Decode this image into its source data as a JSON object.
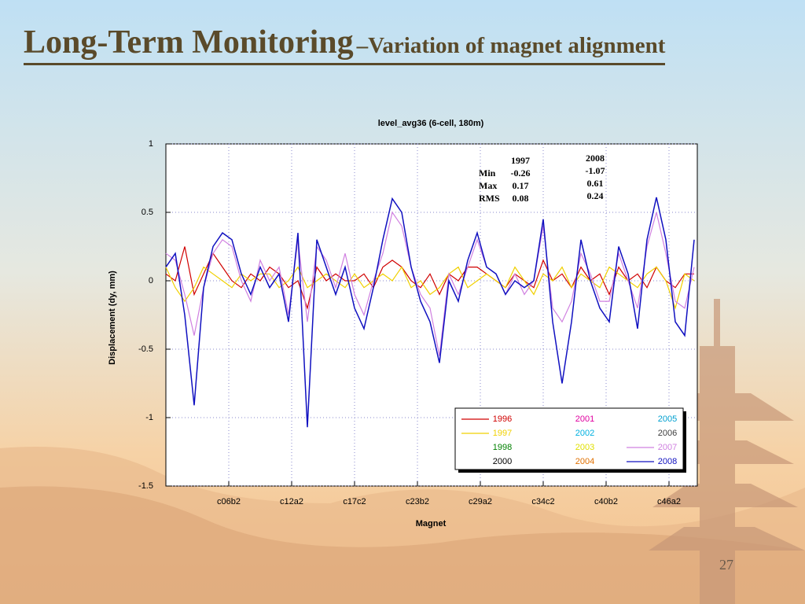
{
  "slide": {
    "title": "Long-Term Monitoring",
    "subtitle": "–Variation of magnet alignment",
    "page_number": "27"
  },
  "chart_data": {
    "type": "line",
    "title": "level_avg36 (6-cell, 180m)",
    "x_label": "Magnet",
    "y_label": "Displacement (dy, mm)",
    "xlim": [
      0,
      338
    ],
    "ylim": [
      -1.5,
      1
    ],
    "xticks": [
      {
        "value": 40,
        "label": "c06b2"
      },
      {
        "value": 80,
        "label": "c12a2"
      },
      {
        "value": 120,
        "label": "c17c2"
      },
      {
        "value": 160,
        "label": "c23b2"
      },
      {
        "value": 200,
        "label": "c29a2"
      },
      {
        "value": 240,
        "label": "c34c2"
      },
      {
        "value": 280,
        "label": "c40b2"
      },
      {
        "value": 320,
        "label": "c46a2"
      }
    ],
    "yticks": [
      -1.5,
      -1,
      -0.5,
      0,
      0.5,
      1
    ],
    "grid": true,
    "stats_labels": [
      "Min",
      "Max",
      "RMS"
    ],
    "stats": [
      {
        "year": "1997",
        "values": [
          "-0.26",
          "0.17",
          "0.08"
        ]
      },
      {
        "year": "2008",
        "values": [
          "-1.07",
          "0.61",
          "0.24"
        ]
      }
    ],
    "x": [
      0,
      6,
      12,
      18,
      24,
      30,
      36,
      42,
      48,
      54,
      60,
      66,
      72,
      78,
      84,
      90,
      96,
      102,
      108,
      114,
      120,
      126,
      132,
      138,
      144,
      150,
      156,
      162,
      168,
      174,
      180,
      186,
      192,
      198,
      204,
      210,
      216,
      222,
      228,
      234,
      240,
      246,
      252,
      258,
      264,
      270,
      276,
      282,
      288,
      294,
      300,
      306,
      312,
      318,
      324,
      330,
      336
    ],
    "series": [
      {
        "name": "1996",
        "color": "#d00000",
        "values": [
          0.05,
          0.0,
          0.25,
          -0.1,
          0.05,
          0.2,
          0.1,
          0.0,
          -0.05,
          0.05,
          0.0,
          0.1,
          0.05,
          -0.05,
          0.0,
          -0.2,
          0.1,
          0.0,
          0.05,
          0.0,
          0.0,
          0.05,
          -0.05,
          0.1,
          0.15,
          0.1,
          0.0,
          -0.05,
          0.05,
          -0.1,
          0.05,
          0.0,
          0.1,
          0.1,
          0.05,
          0.0,
          -0.05,
          0.05,
          0.0,
          -0.05,
          0.15,
          0.0,
          0.05,
          -0.05,
          0.1,
          0.0,
          0.05,
          -0.1,
          0.1,
          0.0,
          0.05,
          -0.05,
          0.1,
          0.0,
          -0.05,
          0.05,
          0.05
        ]
      },
      {
        "name": "1997",
        "color": "#f0d000",
        "values": [
          0.1,
          -0.05,
          -0.15,
          -0.05,
          0.1,
          0.05,
          0.0,
          -0.05,
          0.05,
          0.0,
          0.05,
          0.05,
          -0.05,
          0.0,
          0.1,
          -0.05,
          0.0,
          0.05,
          0.0,
          -0.05,
          0.05,
          -0.05,
          0.0,
          0.05,
          0.0,
          0.1,
          -0.05,
          0.0,
          -0.1,
          -0.05,
          0.05,
          0.1,
          -0.05,
          0.0,
          0.05,
          0.0,
          -0.05,
          0.1,
          0.0,
          -0.1,
          0.05,
          0.0,
          0.1,
          -0.05,
          0.05,
          0.0,
          -0.05,
          0.1,
          0.05,
          0.0,
          -0.05,
          0.05,
          0.1,
          0.0,
          -0.2,
          0.05,
          0.0
        ]
      },
      {
        "name": "1998",
        "color": "#008000"
      },
      {
        "name": "2000",
        "color": "#000000"
      },
      {
        "name": "2001",
        "color": "#e000a0"
      },
      {
        "name": "2002",
        "color": "#00b0e0"
      },
      {
        "name": "2003",
        "color": "#e0e000"
      },
      {
        "name": "2004",
        "color": "#e07000"
      },
      {
        "name": "2005",
        "color": "#00a0d0"
      },
      {
        "name": "2006",
        "color": "#404040"
      },
      {
        "name": "2007",
        "color": "#d080e0",
        "values": [
          0.2,
          0.15,
          -0.1,
          -0.4,
          -0.05,
          0.2,
          0.3,
          0.25,
          0.0,
          -0.15,
          0.15,
          0.0,
          0.1,
          -0.25,
          0.3,
          -0.3,
          0.25,
          0.15,
          -0.05,
          0.2,
          -0.1,
          -0.25,
          0.0,
          0.2,
          0.5,
          0.4,
          0.1,
          -0.1,
          -0.2,
          -0.55,
          0.05,
          -0.1,
          0.1,
          0.3,
          0.1,
          0.05,
          -0.1,
          0.05,
          -0.1,
          0.0,
          0.4,
          -0.2,
          -0.3,
          -0.15,
          0.2,
          0.05,
          -0.15,
          -0.15,
          0.2,
          0.0,
          -0.2,
          0.25,
          0.5,
          0.2,
          -0.15,
          -0.2,
          0.1
        ]
      },
      {
        "name": "2008",
        "color": "#1010c0",
        "values": [
          0.1,
          0.2,
          -0.25,
          -0.91,
          -0.05,
          0.25,
          0.35,
          0.3,
          0.05,
          -0.1,
          0.1,
          -0.05,
          0.05,
          -0.3,
          0.35,
          -1.07,
          0.3,
          0.1,
          -0.1,
          0.1,
          -0.2,
          -0.35,
          -0.05,
          0.3,
          0.6,
          0.5,
          0.1,
          -0.15,
          -0.3,
          -0.6,
          0.0,
          -0.15,
          0.15,
          0.35,
          0.1,
          0.05,
          -0.1,
          0.0,
          -0.05,
          0.0,
          0.45,
          -0.3,
          -0.75,
          -0.3,
          0.3,
          0.0,
          -0.2,
          -0.3,
          0.25,
          0.05,
          -0.35,
          0.3,
          0.61,
          0.3,
          -0.3,
          -0.4,
          0.3
        ]
      }
    ]
  }
}
